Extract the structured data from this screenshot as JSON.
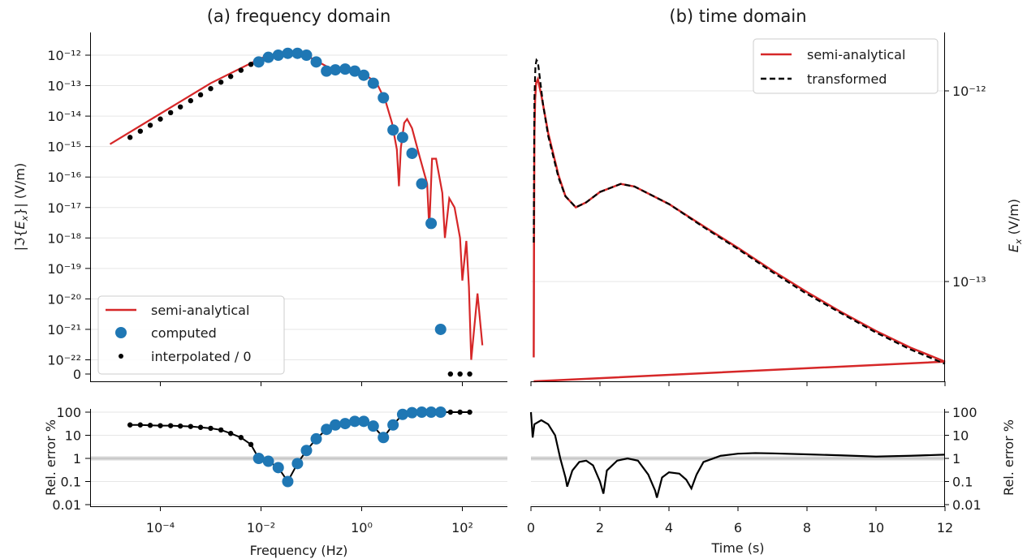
{
  "colors": {
    "semi": "#d62728",
    "computed": "#1f77b4",
    "interp": "#000000",
    "transformed": "#000000",
    "grid": "#e6e6e6",
    "oneline": "#bcbcbc"
  },
  "figure": {
    "panel_a_title": "(a) frequency domain",
    "panel_b_title": "(b) time domain",
    "legend_a": [
      "semi-analytical",
      "computed",
      "interpolated / 0"
    ],
    "legend_b": [
      "semi-analytical",
      "transformed"
    ]
  },
  "chart_data": [
    {
      "type": "line",
      "title": "(a) frequency domain",
      "xlabel": "",
      "ylabel": "|ℑ{E_x}| (V/m)",
      "xscale": "log",
      "yscale": "log",
      "xlim": [
        1e-06,
        500
      ],
      "xticks": [
        "10⁻⁴",
        "10⁻²",
        "10⁰",
        "10²"
      ],
      "yticks": [
        "10⁻¹²",
        "10⁻¹³",
        "10⁻¹⁴",
        "10⁻¹⁵",
        "10⁻¹⁶",
        "10⁻¹⁷",
        "10⁻¹⁸",
        "10⁻¹⁹",
        "10⁻²⁰",
        "10⁻²¹",
        "10⁻²²",
        "0"
      ],
      "grid": "horizontal",
      "legend": "lower-left",
      "series": [
        {
          "name": "semi-analytical",
          "x": [
            1e-05,
            0.0001,
            0.001,
            0.01,
            0.02,
            0.05,
            0.1,
            0.3,
            0.6,
            1.0,
            2.0,
            3.0,
            4.0,
            5.0,
            5.5,
            6.0,
            7.0,
            8.0,
            10.0,
            14.0,
            20.0,
            22.0,
            25.0,
            30.0,
            40.0,
            45.0,
            55.0,
            70.0,
            90.0,
            100.0,
            120.0,
            135.0,
            150.0,
            200.0,
            250.0
          ],
          "y": [
            1.2e-15,
            1.2e-14,
            1.2e-13,
            8e-13,
            1.1e-12,
            1.2e-12,
            8e-13,
            3e-13,
            3e-13,
            2.8e-13,
            1.2e-13,
            3e-14,
            6e-15,
            8e-16,
            5e-17,
            9e-16,
            6e-15,
            8e-15,
            4e-15,
            5e-16,
            6e-17,
            2e-18,
            4e-16,
            4e-16,
            3e-17,
            1e-18,
            2e-17,
            1e-17,
            1e-18,
            4e-20,
            8e-19,
            2.5e-20,
            1e-22,
            1.5e-20,
            3e-22
          ]
        },
        {
          "name": "computed",
          "x": [
            0.009,
            0.014,
            0.022,
            0.034,
            0.053,
            0.08,
            0.125,
            0.2,
            0.3,
            0.47,
            0.73,
            1.1,
            1.7,
            2.7,
            4.2,
            6.5,
            10.0,
            15.6,
            24.0,
            37.0
          ],
          "y": [
            6e-13,
            8.5e-13,
            1e-12,
            1.15e-12,
            1.15e-12,
            1e-12,
            6e-13,
            3e-13,
            3.3e-13,
            3.5e-13,
            3e-13,
            2.2e-13,
            1.2e-13,
            4e-14,
            3.5e-15,
            2e-15,
            6e-16,
            6e-17,
            3e-18,
            1e-21
          ]
        },
        {
          "name": "interpolated / 0",
          "x": [
            2.5e-05,
            4e-05,
            6.3e-05,
            0.0001,
            0.00016,
            0.00025,
            0.0004,
            0.00063,
            0.001,
            0.0016,
            0.0025,
            0.004,
            0.0063,
            58.0,
            90.0,
            140.0
          ],
          "y": [
            2e-15,
            3.2e-15,
            5e-15,
            8e-15,
            1.3e-14,
            2e-14,
            3.2e-14,
            5e-14,
            8e-14,
            1.3e-13,
            2e-13,
            3.2e-13,
            5e-13,
            0,
            0,
            0
          ]
        }
      ]
    },
    {
      "type": "line",
      "title": "(b) time domain",
      "xlabel": "",
      "ylabel": "E_x (V/m)",
      "yscale": "log",
      "xlim": [
        0,
        12
      ],
      "ylim": [
        4e-14,
        2e-12
      ],
      "yticks": [
        "10⁻¹²",
        "10⁻¹³"
      ],
      "grid": "horizontal",
      "legend": "top-right",
      "series": [
        {
          "name": "semi-analytical",
          "x": [
            0.08,
            0.09,
            0.1,
            0.12,
            0.15,
            0.2,
            0.3,
            0.5,
            0.8,
            1.0,
            1.3,
            1.6,
            2.0,
            2.6,
            3.0,
            4.0,
            5.0,
            6.0,
            7.0,
            8.0,
            9.0,
            10.0,
            11.0,
            12.0
          ],
          "y": [
            4e-14,
            2e-13,
            6e-13,
            9e-13,
            1.1e-12,
            1.15e-12,
            9.5e-13,
            6e-13,
            3.6e-13,
            2.8e-13,
            2.45e-13,
            2.6e-13,
            2.95e-13,
            3.25e-13,
            3.15e-13,
            2.55e-13,
            1.95e-13,
            1.5e-13,
            1.14e-13,
            8.8e-14,
            6.9e-14,
            5.5e-14,
            4.5e-14,
            3.8e-14
          ]
        },
        {
          "name": "transformed",
          "x": [
            0.08,
            0.1,
            0.13,
            0.16,
            0.2,
            0.25,
            0.35,
            0.5,
            0.8,
            1.0,
            1.3,
            1.6,
            2.0,
            2.6,
            3.0,
            4.0,
            5.0,
            6.0,
            7.0,
            8.0,
            9.0,
            10.0,
            11.0,
            12.0
          ],
          "y": [
            1.6e-13,
            9e-13,
            1.35e-12,
            1.45e-12,
            1.42e-12,
            1.2e-12,
            8.5e-13,
            5.8e-13,
            3.5e-13,
            2.8e-13,
            2.45e-13,
            2.6e-13,
            2.95e-13,
            3.25e-13,
            3.15e-13,
            2.55e-13,
            1.93e-13,
            1.48e-13,
            1.12e-13,
            8.6e-14,
            6.8e-14,
            5.4e-14,
            4.4e-14,
            3.7e-14
          ]
        }
      ]
    },
    {
      "type": "line",
      "xlabel": "Frequency (Hz)",
      "ylabel": "Rel. error %",
      "xscale": "log",
      "yscale": "log",
      "ylim": [
        0.01,
        100
      ],
      "xticks": [
        "10⁻⁴",
        "10⁻²",
        "10⁰",
        "10²"
      ],
      "yticks": [
        "100",
        "10",
        "1",
        "0.1",
        "0.01"
      ],
      "series": [
        {
          "name": "interpolated",
          "x": [
            2.5e-05,
            4e-05,
            6.3e-05,
            0.0001,
            0.00016,
            0.00025,
            0.0004,
            0.00063,
            0.001,
            0.0016,
            0.0025,
            0.004,
            0.0063,
            58.0,
            90.0,
            140.0
          ],
          "y": [
            28,
            28,
            27,
            26,
            26,
            25,
            24,
            22,
            20,
            17,
            12,
            8,
            4,
            100,
            100,
            100
          ]
        },
        {
          "name": "computed",
          "x": [
            0.009,
            0.014,
            0.022,
            0.034,
            0.053,
            0.08,
            0.125,
            0.2,
            0.3,
            0.47,
            0.73,
            1.1,
            1.7,
            2.7,
            4.2,
            6.5,
            10.0,
            15.6,
            24.0,
            37.0
          ],
          "y": [
            1.0,
            0.75,
            0.4,
            0.1,
            0.6,
            2.2,
            7,
            18,
            28,
            32,
            40,
            40,
            25,
            8,
            28,
            80,
            95,
            100,
            100,
            100
          ]
        }
      ]
    },
    {
      "type": "line",
      "xlabel": "Time (s)",
      "ylabel": "Rel. error %",
      "yscale": "log",
      "xlim": [
        0,
        12
      ],
      "ylim": [
        0.01,
        100
      ],
      "xticks": [
        "0",
        "2",
        "4",
        "6",
        "8",
        "10",
        "12"
      ],
      "yticks": [
        "100",
        "10",
        "1",
        "0.1",
        "0.01"
      ],
      "series": [
        {
          "name": "rel. error",
          "x": [
            0.0,
            0.05,
            0.1,
            0.3,
            0.5,
            0.7,
            0.85,
            1.0,
            1.05,
            1.2,
            1.4,
            1.6,
            1.8,
            2.0,
            2.1,
            2.2,
            2.5,
            2.8,
            3.1,
            3.4,
            3.6,
            3.65,
            3.8,
            4.0,
            4.3,
            4.5,
            4.65,
            4.8,
            5.0,
            5.5,
            6.0,
            6.5,
            7.0,
            8.0,
            9.0,
            10.0,
            11.0,
            12.0
          ],
          "y": [
            100,
            8,
            30,
            45,
            30,
            10,
            1,
            0.15,
            0.06,
            0.3,
            0.7,
            0.8,
            0.5,
            0.1,
            0.03,
            0.3,
            0.8,
            1.0,
            0.8,
            0.2,
            0.04,
            0.02,
            0.15,
            0.25,
            0.22,
            0.12,
            0.05,
            0.2,
            0.7,
            1.3,
            1.6,
            1.7,
            1.65,
            1.5,
            1.35,
            1.2,
            1.3,
            1.45
          ]
        }
      ]
    }
  ]
}
